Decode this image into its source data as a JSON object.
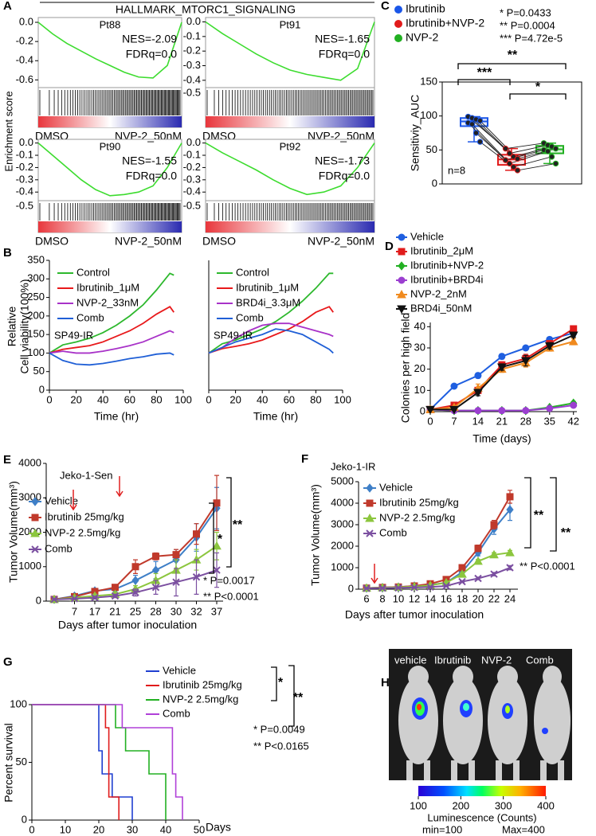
{
  "panel_labels": [
    "A",
    "B",
    "C",
    "D",
    "E",
    "F",
    "G",
    "H"
  ],
  "gsea_header": {
    "title": "HALLMARK_MTORC1_SIGNALING",
    "y_label": "Enrichment score"
  },
  "imaging": {
    "groups": [
      "vehicle",
      "Ibrutinib",
      "NVP-2",
      "Comb"
    ],
    "colorbar": {
      "lim": [
        100,
        400
      ],
      "ticks": [
        100,
        200,
        300,
        400
      ],
      "label": "Luminescence (Counts)",
      "min_label": "min=100",
      "max_label": "Max=400"
    }
  },
  "chart_data": [
    {
      "type": "gsea",
      "title": "Pt88",
      "annotations": [
        "NES=-2.09",
        "FDRq=0.0"
      ],
      "x": [
        0,
        0.1,
        0.2,
        0.3,
        0.4,
        0.5,
        0.6,
        0.7,
        0.8,
        0.9,
        1
      ],
      "values": [
        0,
        -0.12,
        -0.22,
        -0.3,
        -0.38,
        -0.45,
        -0.52,
        -0.57,
        -0.58,
        -0.45,
        0
      ],
      "color": "#3ddc2f",
      "xlim": [
        0,
        1
      ],
      "ylim": [
        -0.68,
        0.05
      ],
      "yticks": [
        {
          "value": 0,
          "label": "0.0"
        },
        -0.2,
        -0.4,
        -0.6
      ],
      "x_labels": [
        "DMSO",
        "NVP-2_50nM"
      ]
    },
    {
      "type": "gsea",
      "title": "Pt91",
      "annotations": [
        "NES=-1.65",
        "FDRq=0.0"
      ],
      "x": [
        0,
        0.1,
        0.2,
        0.3,
        0.4,
        0.5,
        0.6,
        0.7,
        0.8,
        0.9,
        1
      ],
      "values": [
        0,
        -0.08,
        -0.15,
        -0.22,
        -0.28,
        -0.33,
        -0.36,
        -0.38,
        -0.4,
        -0.32,
        0
      ],
      "color": "#3ddc2f",
      "xlim": [
        0,
        1
      ],
      "ylim": [
        -0.45,
        0.03
      ],
      "yticks": [
        {
          "value": 0,
          "label": "0.0"
        },
        -0.1,
        -0.2,
        -0.3,
        -0.4
      ],
      "rank_tick": -0.5,
      "x_labels": [
        "DMSO",
        "NVP-2_50nM"
      ]
    },
    {
      "type": "gsea",
      "title": "Pt90",
      "annotations": [
        "NES=-1.55",
        "FDRq=0.0"
      ],
      "x": [
        0,
        0.1,
        0.2,
        0.3,
        0.4,
        0.5,
        0.6,
        0.7,
        0.8,
        0.9,
        1
      ],
      "values": [
        0,
        -0.1,
        -0.2,
        -0.3,
        -0.38,
        -0.43,
        -0.42,
        -0.4,
        -0.35,
        -0.2,
        0
      ],
      "color": "#3ddc2f",
      "xlim": [
        0,
        1
      ],
      "ylim": [
        -0.47,
        0.03
      ],
      "yticks": [
        {
          "value": 0,
          "label": "0.0"
        },
        -0.1,
        -0.2,
        -0.3,
        -0.4
      ],
      "rank_tick": -0.5,
      "x_labels": [
        "DMSO",
        "NVP-2_50nM"
      ]
    },
    {
      "type": "gsea",
      "title": "Pt92",
      "annotations": [
        "NES=-1.73",
        "FDRq=0.0"
      ],
      "x": [
        0,
        0.1,
        0.2,
        0.3,
        0.4,
        0.5,
        0.6,
        0.7,
        0.8,
        0.9,
        1
      ],
      "values": [
        0,
        -0.08,
        -0.15,
        -0.22,
        -0.3,
        -0.37,
        -0.42,
        -0.4,
        -0.35,
        -0.2,
        0
      ],
      "color": "#3ddc2f",
      "xlim": [
        0,
        1
      ],
      "ylim": [
        -0.47,
        0.03
      ],
      "yticks": [
        {
          "value": 0,
          "label": "0.0"
        },
        -0.1,
        -0.2,
        -0.3,
        -0.4
      ],
      "rank_tick": -0.5,
      "x_labels": [
        "DMSO",
        "NVP-2_50nM"
      ]
    },
    {
      "type": "line",
      "x": [
        0,
        10,
        20,
        30,
        40,
        50,
        60,
        70,
        80,
        90,
        93
      ],
      "xlim": [
        0,
        100
      ],
      "xticks": [
        0,
        20,
        40,
        60,
        80,
        100
      ],
      "ylim": [
        0,
        350
      ],
      "yticks": [
        0,
        50,
        100,
        150,
        200,
        250,
        300,
        350
      ],
      "annotations": [
        "SP49-IR"
      ],
      "x_label": "Time (hr)",
      "y_label": [
        "Relative",
        "Cell viability(100%)"
      ],
      "series": [
        {
          "name": "Control",
          "color": "#2db82d",
          "values": [
            100,
            122,
            130,
            140,
            155,
            175,
            200,
            230,
            270,
            315,
            310
          ]
        },
        {
          "name": "Ibrutinib_1μM",
          "color": "#e8191b",
          "values": [
            100,
            110,
            115,
            120,
            130,
            145,
            160,
            180,
            205,
            225,
            210
          ]
        },
        {
          "name": "NVP-2_33nM",
          "color": "#a832c8",
          "values": [
            100,
            105,
            100,
            100,
            105,
            112,
            120,
            130,
            145,
            160,
            155
          ]
        },
        {
          "name": "Comb",
          "color": "#1f5fd6",
          "values": [
            100,
            80,
            70,
            68,
            72,
            78,
            85,
            90,
            97,
            100,
            95
          ]
        }
      ]
    },
    {
      "type": "line",
      "x": [
        0,
        10,
        20,
        30,
        40,
        50,
        60,
        70,
        80,
        90,
        93
      ],
      "xlim": [
        0,
        100
      ],
      "xticks": [
        0,
        20,
        40,
        60,
        80,
        100
      ],
      "ylim": [
        0,
        350
      ],
      "annotations": [
        "SP49-IR"
      ],
      "x_label": "Time (hr)",
      "series": [
        {
          "name": "Control",
          "color": "#2db82d",
          "values": [
            100,
            125,
            135,
            150,
            165,
            185,
            210,
            240,
            275,
            315,
            315
          ]
        },
        {
          "name": "Ibrutinib_1μM",
          "color": "#e8191b",
          "values": [
            100,
            112,
            118,
            125,
            135,
            150,
            165,
            185,
            210,
            225,
            210
          ]
        },
        {
          "name": "BRD4i_3.3μM",
          "color": "#a832c8",
          "values": [
            100,
            115,
            140,
            160,
            175,
            180,
            180,
            170,
            160,
            150,
            145
          ]
        },
        {
          "name": "Comb",
          "color": "#1f5fd6",
          "values": [
            100,
            115,
            130,
            140,
            150,
            165,
            160,
            150,
            130,
            110,
            100
          ]
        }
      ]
    },
    {
      "type": "box",
      "ylim": [
        0,
        150
      ],
      "yticks": [
        0,
        50,
        100,
        150
      ],
      "y_label": "Sensitiviy_AUC",
      "annotations": [
        "* P=0.0433",
        "** P=0.0004",
        "*** P=4.72e-5",
        "**",
        "***",
        "*",
        "n=8"
      ],
      "series": [
        {
          "name": "Ibrutinib",
          "color": "#1a56e8",
          "values": [
            99,
            97,
            95,
            93,
            90,
            88,
            75,
            62
          ],
          "q1": 85,
          "median": 92,
          "q3": 97,
          "whisker_low": 62,
          "whisker_high": 99
        },
        {
          "name": "Ibrutinib+NVP-2",
          "color": "#e11b1b",
          "values": [
            52,
            45,
            40,
            37,
            35,
            30,
            25,
            20
          ],
          "q1": 28,
          "median": 36,
          "q3": 43,
          "whisker_low": 20,
          "whisker_high": 52
        },
        {
          "name": "NVP-2",
          "color": "#22b022",
          "values": [
            60,
            57,
            55,
            52,
            50,
            48,
            40,
            30
          ],
          "q1": 45,
          "median": 51,
          "q3": 56,
          "whisker_low": 30,
          "whisker_high": 60
        }
      ]
    },
    {
      "type": "line",
      "x": [
        0,
        7,
        14,
        21,
        28,
        35,
        42
      ],
      "xlim": [
        0,
        43
      ],
      "xticks": [
        0,
        7,
        14,
        21,
        28,
        35,
        42
      ],
      "ylim": [
        0,
        42
      ],
      "yticks": [
        0,
        10,
        20,
        30,
        40
      ],
      "x_label": "Time (days)",
      "y_label": "Colonies per high field",
      "series": [
        {
          "name": "Vehicle",
          "color": "#1f5fe0",
          "marker": "circle",
          "values": [
            1,
            12,
            17,
            26,
            30,
            34,
            37
          ],
          "errors": [
            0.3,
            0.8,
            1.2,
            1.2,
            1,
            1,
            1.5
          ]
        },
        {
          "name": "Ibrutinib_2μM",
          "color": "#e01b1b",
          "marker": "square",
          "values": [
            1,
            3,
            10,
            22,
            25,
            32,
            39
          ],
          "errors": [
            0.3,
            0.5,
            1,
            1.5,
            2,
            1.5,
            1
          ]
        },
        {
          "name": "Ibrutinib+NVP-2",
          "color": "#22b022",
          "marker": "diamond",
          "values": [
            1,
            0.5,
            0.5,
            0.5,
            0.5,
            2,
            4
          ],
          "errors": [
            0.2,
            0.2,
            0.2,
            0.2,
            0.2,
            0.5,
            0.8
          ]
        },
        {
          "name": "Ibrutinib+BRD4i",
          "color": "#9b3fd0",
          "marker": "circle",
          "values": [
            1,
            0.5,
            0.5,
            0.5,
            0.5,
            1.5,
            3
          ],
          "errors": [
            0.2,
            0.2,
            0.2,
            0.2,
            0.2,
            0.5,
            0.6
          ]
        },
        {
          "name": "NVP-2_2nM",
          "color": "#f08a1e",
          "marker": "triangle",
          "values": [
            1,
            2,
            11,
            20,
            23,
            30,
            33
          ],
          "errors": [
            0.3,
            0.5,
            2,
            1.5,
            2,
            1.5,
            1.5
          ]
        },
        {
          "name": "BRD4i_50nM",
          "color": "#111111",
          "marker": "triangle-down",
          "values": [
            1,
            1,
            9,
            21,
            24,
            31,
            36
          ],
          "errors": [
            0.3,
            0.5,
            1.5,
            1.5,
            2.5,
            1.5,
            1
          ]
        }
      ]
    },
    {
      "type": "line",
      "title": "Jeko-1-Sen",
      "categories": [
        null,
        "7",
        "17",
        "21",
        "25",
        "28",
        "30",
        "32",
        "37"
      ],
      "ylim": [
        0,
        4000
      ],
      "yticks": [
        0,
        1000,
        2000,
        3000,
        4000
      ],
      "x_label": "Days after tumor inoculation",
      "y_label": "Tumor Volume(mm³)",
      "annotations": [
        "*",
        "**",
        "* P=0.0017",
        "** P<0.0001"
      ],
      "series": [
        {
          "name": "Vehicle",
          "color": "#3e7fc7",
          "marker": "diamond",
          "values": [
            50,
            150,
            300,
            350,
            600,
            900,
            1200,
            1850,
            2700
          ],
          "errors": [
            20,
            40,
            60,
            80,
            150,
            250,
            300,
            400,
            600
          ]
        },
        {
          "name": "Ibrutinib 25mg/kg",
          "color": "#c0392b",
          "marker": "square",
          "values": [
            50,
            130,
            280,
            400,
            1000,
            1300,
            1350,
            1950,
            2850
          ],
          "errors": [
            20,
            40,
            60,
            80,
            200,
            100,
            150,
            300,
            800
          ]
        },
        {
          "name": "NVP-2 2.5mg/kg",
          "color": "#8cc63e",
          "marker": "triangle",
          "values": [
            50,
            100,
            150,
            200,
            350,
            600,
            900,
            1200,
            1600
          ],
          "errors": [
            20,
            30,
            50,
            60,
            100,
            200,
            300,
            300,
            400
          ]
        },
        {
          "name": "Comb",
          "color": "#7b4fa0",
          "marker": "x",
          "values": [
            50,
            70,
            100,
            150,
            250,
            400,
            550,
            700,
            900
          ],
          "errors": [
            20,
            20,
            40,
            50,
            100,
            200,
            400,
            500,
            500
          ]
        }
      ]
    },
    {
      "type": "line",
      "title": "Jeko-1-IR",
      "x": [
        6,
        8,
        10,
        12,
        14,
        16,
        18,
        20,
        22,
        24
      ],
      "xlim": [
        5,
        25
      ],
      "xticks": [
        6,
        8,
        10,
        12,
        14,
        16,
        18,
        20,
        22,
        24
      ],
      "ylim": [
        0,
        5000
      ],
      "yticks": [
        0,
        1000,
        2000,
        3000,
        4000,
        5000
      ],
      "x_label": "Days after tumor inoculation",
      "y_label": "Tumor Volume(mm³)",
      "annotations": [
        "**",
        "**",
        "** P<0.0001"
      ],
      "series": [
        {
          "name": "Vehicle",
          "color": "#3e7fc7",
          "marker": "diamond",
          "values": [
            50,
            80,
            100,
            150,
            200,
            300,
            800,
            1700,
            2800,
            3700
          ],
          "errors": [
            10,
            10,
            20,
            30,
            40,
            60,
            100,
            150,
            250,
            500
          ]
        },
        {
          "name": "Ibrutinib 25mg/kg",
          "color": "#c0392b",
          "marker": "square",
          "values": [
            50,
            80,
            100,
            150,
            250,
            450,
            1000,
            1900,
            3000,
            4300
          ],
          "errors": [
            10,
            10,
            20,
            30,
            40,
            60,
            100,
            150,
            200,
            300
          ]
        },
        {
          "name": "NVP-2 2.5mg/kg",
          "color": "#8cc63e",
          "marker": "triangle",
          "values": [
            50,
            70,
            90,
            120,
            180,
            300,
            700,
            1300,
            1600,
            1700
          ],
          "errors": [
            10,
            10,
            20,
            20,
            30,
            40,
            60,
            80,
            100,
            100
          ]
        },
        {
          "name": "Comb",
          "color": "#7b4fa0",
          "marker": "x",
          "values": [
            40,
            50,
            60,
            80,
            100,
            150,
            350,
            500,
            700,
            1000
          ],
          "errors": [
            10,
            10,
            10,
            20,
            20,
            30,
            40,
            60,
            80,
            100
          ]
        }
      ]
    },
    {
      "type": "step",
      "xlim": [
        0,
        50
      ],
      "xticks": [
        0,
        10,
        20,
        30,
        40,
        50
      ],
      "ylim": [
        0,
        100
      ],
      "yticks": [
        0,
        50,
        100
      ],
      "x_label": "Days",
      "y_label": "Percent survival",
      "annotations": [
        "*",
        "**",
        "* P=0.0049",
        "** P<0.0165"
      ],
      "series": [
        {
          "name": "Vehicle",
          "color": "#1f3fd0",
          "x": [
            0,
            20,
            21,
            24,
            30
          ],
          "values": [
            100,
            60,
            40,
            20,
            0
          ]
        },
        {
          "name": "Ibrutinib 25mg/kg",
          "color": "#e01b1b",
          "x": [
            0,
            22,
            23,
            26
          ],
          "values": [
            100,
            80,
            20,
            0
          ]
        },
        {
          "name": "NVP-2 2.5mg/kg",
          "color": "#22b022",
          "x": [
            0,
            25,
            28,
            35,
            40
          ],
          "values": [
            100,
            80,
            60,
            40,
            0
          ]
        },
        {
          "name": "Comb",
          "color": "#b040d8",
          "x": [
            0,
            27,
            42,
            43,
            45
          ],
          "values": [
            100,
            80,
            40,
            20,
            0
          ]
        }
      ]
    }
  ]
}
